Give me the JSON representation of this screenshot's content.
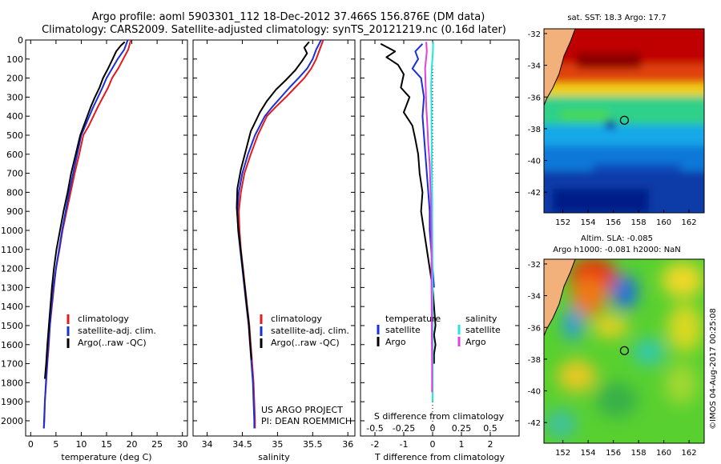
{
  "title_line1": "Argo profile: aoml 5903301_112 18-Dec-2012 37.466S 156.876E (DM data)",
  "title_line2": "Climatology: CARS2009. Satellite-adjusted climatology: synTS_20121219.nc (0.16d later)",
  "colors": {
    "climatology": "#e41a1c",
    "satellite": "#1a2fd6",
    "argo": "#000000",
    "sal_satellite": "#22e6e6",
    "sal_argo": "#e040e0"
  },
  "chart_data": [
    {
      "id": "temperature",
      "type": "line",
      "xlabel": "temperature (deg C)",
      "ylabel": "",
      "xlim": [
        -1,
        31
      ],
      "ylim": [
        2080,
        0
      ],
      "xticks": [
        0,
        5,
        10,
        15,
        20,
        25,
        30
      ],
      "yticks": [
        0,
        100,
        200,
        300,
        400,
        500,
        600,
        700,
        800,
        900,
        1000,
        1100,
        1200,
        1300,
        1400,
        1500,
        1600,
        1700,
        1800,
        1900,
        2000
      ],
      "legend": [
        "climatology",
        "satellite-adj. clim.",
        "Argo(..raw -QC)"
      ],
      "series": [
        {
          "name": "climatology",
          "color": "#e41a1c",
          "x": [
            19.8,
            19.3,
            18.3,
            17.3,
            16.1,
            15.3,
            14.3,
            13.3,
            12.4,
            11.5,
            10.4,
            9.6,
            8.7,
            7.9,
            7.1,
            6.3,
            5.7,
            5.0,
            4.6,
            4.2,
            3.8,
            3.6,
            3.3,
            3.05,
            2.8,
            2.7,
            2.6
          ],
          "y": [
            0,
            50,
            100,
            150,
            200,
            250,
            300,
            350,
            400,
            450,
            500,
            600,
            700,
            800,
            900,
            1000,
            1100,
            1200,
            1300,
            1400,
            1500,
            1600,
            1700,
            1800,
            1900,
            2000,
            2040
          ]
        },
        {
          "name": "satellite-adj. clim.",
          "color": "#1a2fd6",
          "x": [
            19.2,
            18.5,
            17.2,
            16.1,
            15.0,
            14.2,
            13.3,
            12.4,
            11.6,
            10.8,
            10.0,
            9.2,
            8.4,
            7.6,
            6.9,
            6.2,
            5.6,
            5.0,
            4.5,
            4.1,
            3.8,
            3.5,
            3.25,
            3.0,
            2.8,
            2.65,
            2.6
          ],
          "y": [
            0,
            50,
            100,
            150,
            200,
            250,
            300,
            350,
            400,
            450,
            500,
            600,
            700,
            800,
            900,
            1000,
            1100,
            1200,
            1300,
            1400,
            1500,
            1600,
            1700,
            1800,
            1900,
            2000,
            2040
          ]
        },
        {
          "name": "Argo(..raw -QC)",
          "color": "#000000",
          "x": [
            18.6,
            17.8,
            16.9,
            16.2,
            15.3,
            14.3,
            13.6,
            12.7,
            11.9,
            11.2,
            10.5,
            9.8,
            8.9,
            8.0,
            7.3,
            6.5,
            5.8,
            5.1,
            4.6,
            4.2,
            3.9,
            3.6,
            3.3,
            3.05,
            2.8
          ],
          "y": [
            10,
            30,
            60,
            100,
            150,
            200,
            250,
            300,
            350,
            400,
            450,
            500,
            600,
            700,
            800,
            900,
            1000,
            1100,
            1200,
            1300,
            1400,
            1500,
            1600,
            1700,
            1780
          ]
        }
      ]
    },
    {
      "id": "salinity",
      "type": "line",
      "xlabel": "salinity",
      "ylabel": "",
      "xlim": [
        33.8,
        36.1
      ],
      "ylim": [
        2080,
        0
      ],
      "xticks": [
        34,
        34.5,
        35,
        35.5,
        36
      ],
      "xtick_labels": [
        "34",
        "34.5",
        "35",
        "35.5",
        "36"
      ],
      "legend": [
        "climatology",
        "satellite-adj. clim.",
        "Argo(..raw -QC)"
      ],
      "annotation": [
        "US ARGO PROJECT",
        "PI: DEAN ROEMMICH"
      ],
      "series": [
        {
          "name": "climatology",
          "color": "#e41a1c",
          "x": [
            35.65,
            35.6,
            35.55,
            35.48,
            35.38,
            35.25,
            35.12,
            34.98,
            34.85,
            34.72,
            34.62,
            34.53,
            34.48,
            34.45,
            34.46,
            34.48,
            34.51,
            34.54,
            34.57,
            34.6,
            34.62,
            34.64,
            34.66,
            34.67,
            34.68,
            34.68
          ],
          "y": [
            0,
            50,
            100,
            150,
            200,
            250,
            300,
            350,
            400,
            500,
            600,
            700,
            800,
            900,
            1000,
            1100,
            1200,
            1300,
            1400,
            1500,
            1600,
            1700,
            1800,
            1900,
            2000,
            2040
          ]
        },
        {
          "name": "satellite-adj. clim.",
          "color": "#1a2fd6",
          "x": [
            35.62,
            35.55,
            35.5,
            35.42,
            35.3,
            35.17,
            35.05,
            34.93,
            34.82,
            34.68,
            34.58,
            34.5,
            34.45,
            34.43,
            34.44,
            34.47,
            34.5,
            34.53,
            34.56,
            34.59,
            34.61,
            34.63,
            34.65,
            34.66,
            34.67,
            34.67
          ],
          "y": [
            0,
            50,
            100,
            150,
            200,
            250,
            300,
            350,
            400,
            500,
            600,
            700,
            800,
            900,
            1000,
            1100,
            1200,
            1300,
            1400,
            1500,
            1600,
            1700,
            1800,
            1900,
            2000,
            2040
          ]
        },
        {
          "name": "Argo(..raw -QC)",
          "color": "#000000",
          "x": [
            35.45,
            35.38,
            35.42,
            35.35,
            35.25,
            35.12,
            34.98,
            34.85,
            34.75,
            34.62,
            34.55,
            34.48,
            34.43,
            34.42,
            34.44,
            34.47,
            34.5,
            34.53,
            34.56,
            34.59,
            34.61,
            34.63
          ],
          "y": [
            10,
            40,
            70,
            110,
            160,
            210,
            260,
            320,
            380,
            480,
            580,
            680,
            780,
            880,
            980,
            1080,
            1180,
            1280,
            1380,
            1480,
            1580,
            1680
          ]
        }
      ]
    },
    {
      "id": "differences",
      "type": "line",
      "xlabel": "T difference from climatology",
      "xlabel_top": "S difference from climatology",
      "xlim": [
        -2.5,
        3.0
      ],
      "ylim": [
        2080,
        0
      ],
      "xticks": [
        -2,
        -1,
        0,
        1,
        2
      ],
      "xtick_labels": [
        "-2",
        "-1",
        "0",
        "1",
        "2"
      ],
      "sticks": [
        -0.5,
        -0.25,
        0,
        0.25,
        0.5
      ],
      "stick_labels": [
        "-0.5",
        "-0.25",
        "0",
        "0.25",
        "0.5"
      ],
      "legend_headers": [
        "temperature",
        "salinity"
      ],
      "legend_temp": [
        "satellite",
        "Argo"
      ],
      "legend_sal": [
        "satellite",
        "Argo"
      ],
      "series": [
        {
          "name": "T satellite",
          "color": "#1a2fd6",
          "x": [
            -0.35,
            -0.6,
            -0.5,
            -0.7,
            -0.4,
            -0.3,
            -0.35,
            -0.3,
            -0.25,
            -0.2,
            -0.15,
            -0.1,
            -0.1,
            -0.05,
            0.0,
            0.05
          ],
          "y": [
            20,
            60,
            100,
            150,
            200,
            300,
            400,
            500,
            600,
            700,
            800,
            900,
            1000,
            1100,
            1200,
            1300
          ]
        },
        {
          "name": "T Argo",
          "color": "#000000",
          "x": [
            -1.8,
            -1.3,
            -1.6,
            -1.2,
            -1.0,
            -1.1,
            -0.8,
            -1.0,
            -0.7,
            -0.6,
            -0.5,
            -0.45,
            -0.35,
            -0.4,
            -0.3,
            -0.2,
            -0.1,
            0.0,
            0.05,
            0.1,
            0.05,
            0.1,
            0.05,
            0.05
          ],
          "y": [
            20,
            60,
            90,
            130,
            180,
            250,
            300,
            380,
            450,
            520,
            600,
            700,
            800,
            900,
            1000,
            1100,
            1200,
            1300,
            1400,
            1500,
            1550,
            1600,
            1650,
            1700
          ]
        },
        {
          "name": "S satellite",
          "color": "#22e6e6",
          "x": [
            0.02,
            0.01,
            -0.03,
            -0.05,
            -0.04,
            -0.04,
            -0.03,
            -0.03,
            -0.02,
            -0.01,
            -0.01,
            -0.005,
            0.0,
            0.0,
            0.005,
            0.0
          ],
          "y": [
            10,
            60,
            150,
            250,
            350,
            450,
            550,
            650,
            750,
            850,
            950,
            1100,
            1300,
            1500,
            1700,
            1900
          ]
        },
        {
          "name": "S Argo",
          "color": "#e040e0",
          "x": [
            -0.22,
            -0.2,
            -0.26,
            -0.24,
            -0.22,
            -0.18,
            -0.15,
            -0.1,
            -0.08,
            -0.06,
            -0.05,
            -0.04,
            -0.04,
            -0.03,
            -0.02,
            -0.02
          ],
          "y": [
            10,
            60,
            150,
            250,
            350,
            450,
            550,
            650,
            750,
            850,
            950,
            1100,
            1300,
            1500,
            1700,
            1850
          ]
        }
      ]
    },
    {
      "id": "sst_map",
      "type": "heatmap",
      "title": "sat. SST: 18.3 Argo: 17.7",
      "xticks": [
        152,
        154,
        156,
        158,
        160,
        162
      ],
      "yticks": [
        -32,
        -34,
        -36,
        -38,
        -40,
        -42
      ],
      "xlim": [
        150.5,
        163.2
      ],
      "ylim": [
        -43.3,
        -31.7
      ],
      "marker": {
        "lon": 156.876,
        "lat": -37.466
      }
    },
    {
      "id": "sla_map",
      "type": "heatmap",
      "title_line1": "Altim. SLA: -0.085",
      "title_line2": "Argo h1000: -0.081 h2000: NaN",
      "xticks": [
        152,
        154,
        156,
        158,
        160,
        162
      ],
      "yticks": [
        -32,
        -34,
        -36,
        -38,
        -40,
        -42
      ],
      "xlim": [
        150.5,
        163.2
      ],
      "ylim": [
        -43.3,
        -31.7
      ],
      "marker": {
        "lon": 156.876,
        "lat": -37.466
      }
    }
  ],
  "credit": "©IMOS 04-Aug-2017 00:25:08"
}
